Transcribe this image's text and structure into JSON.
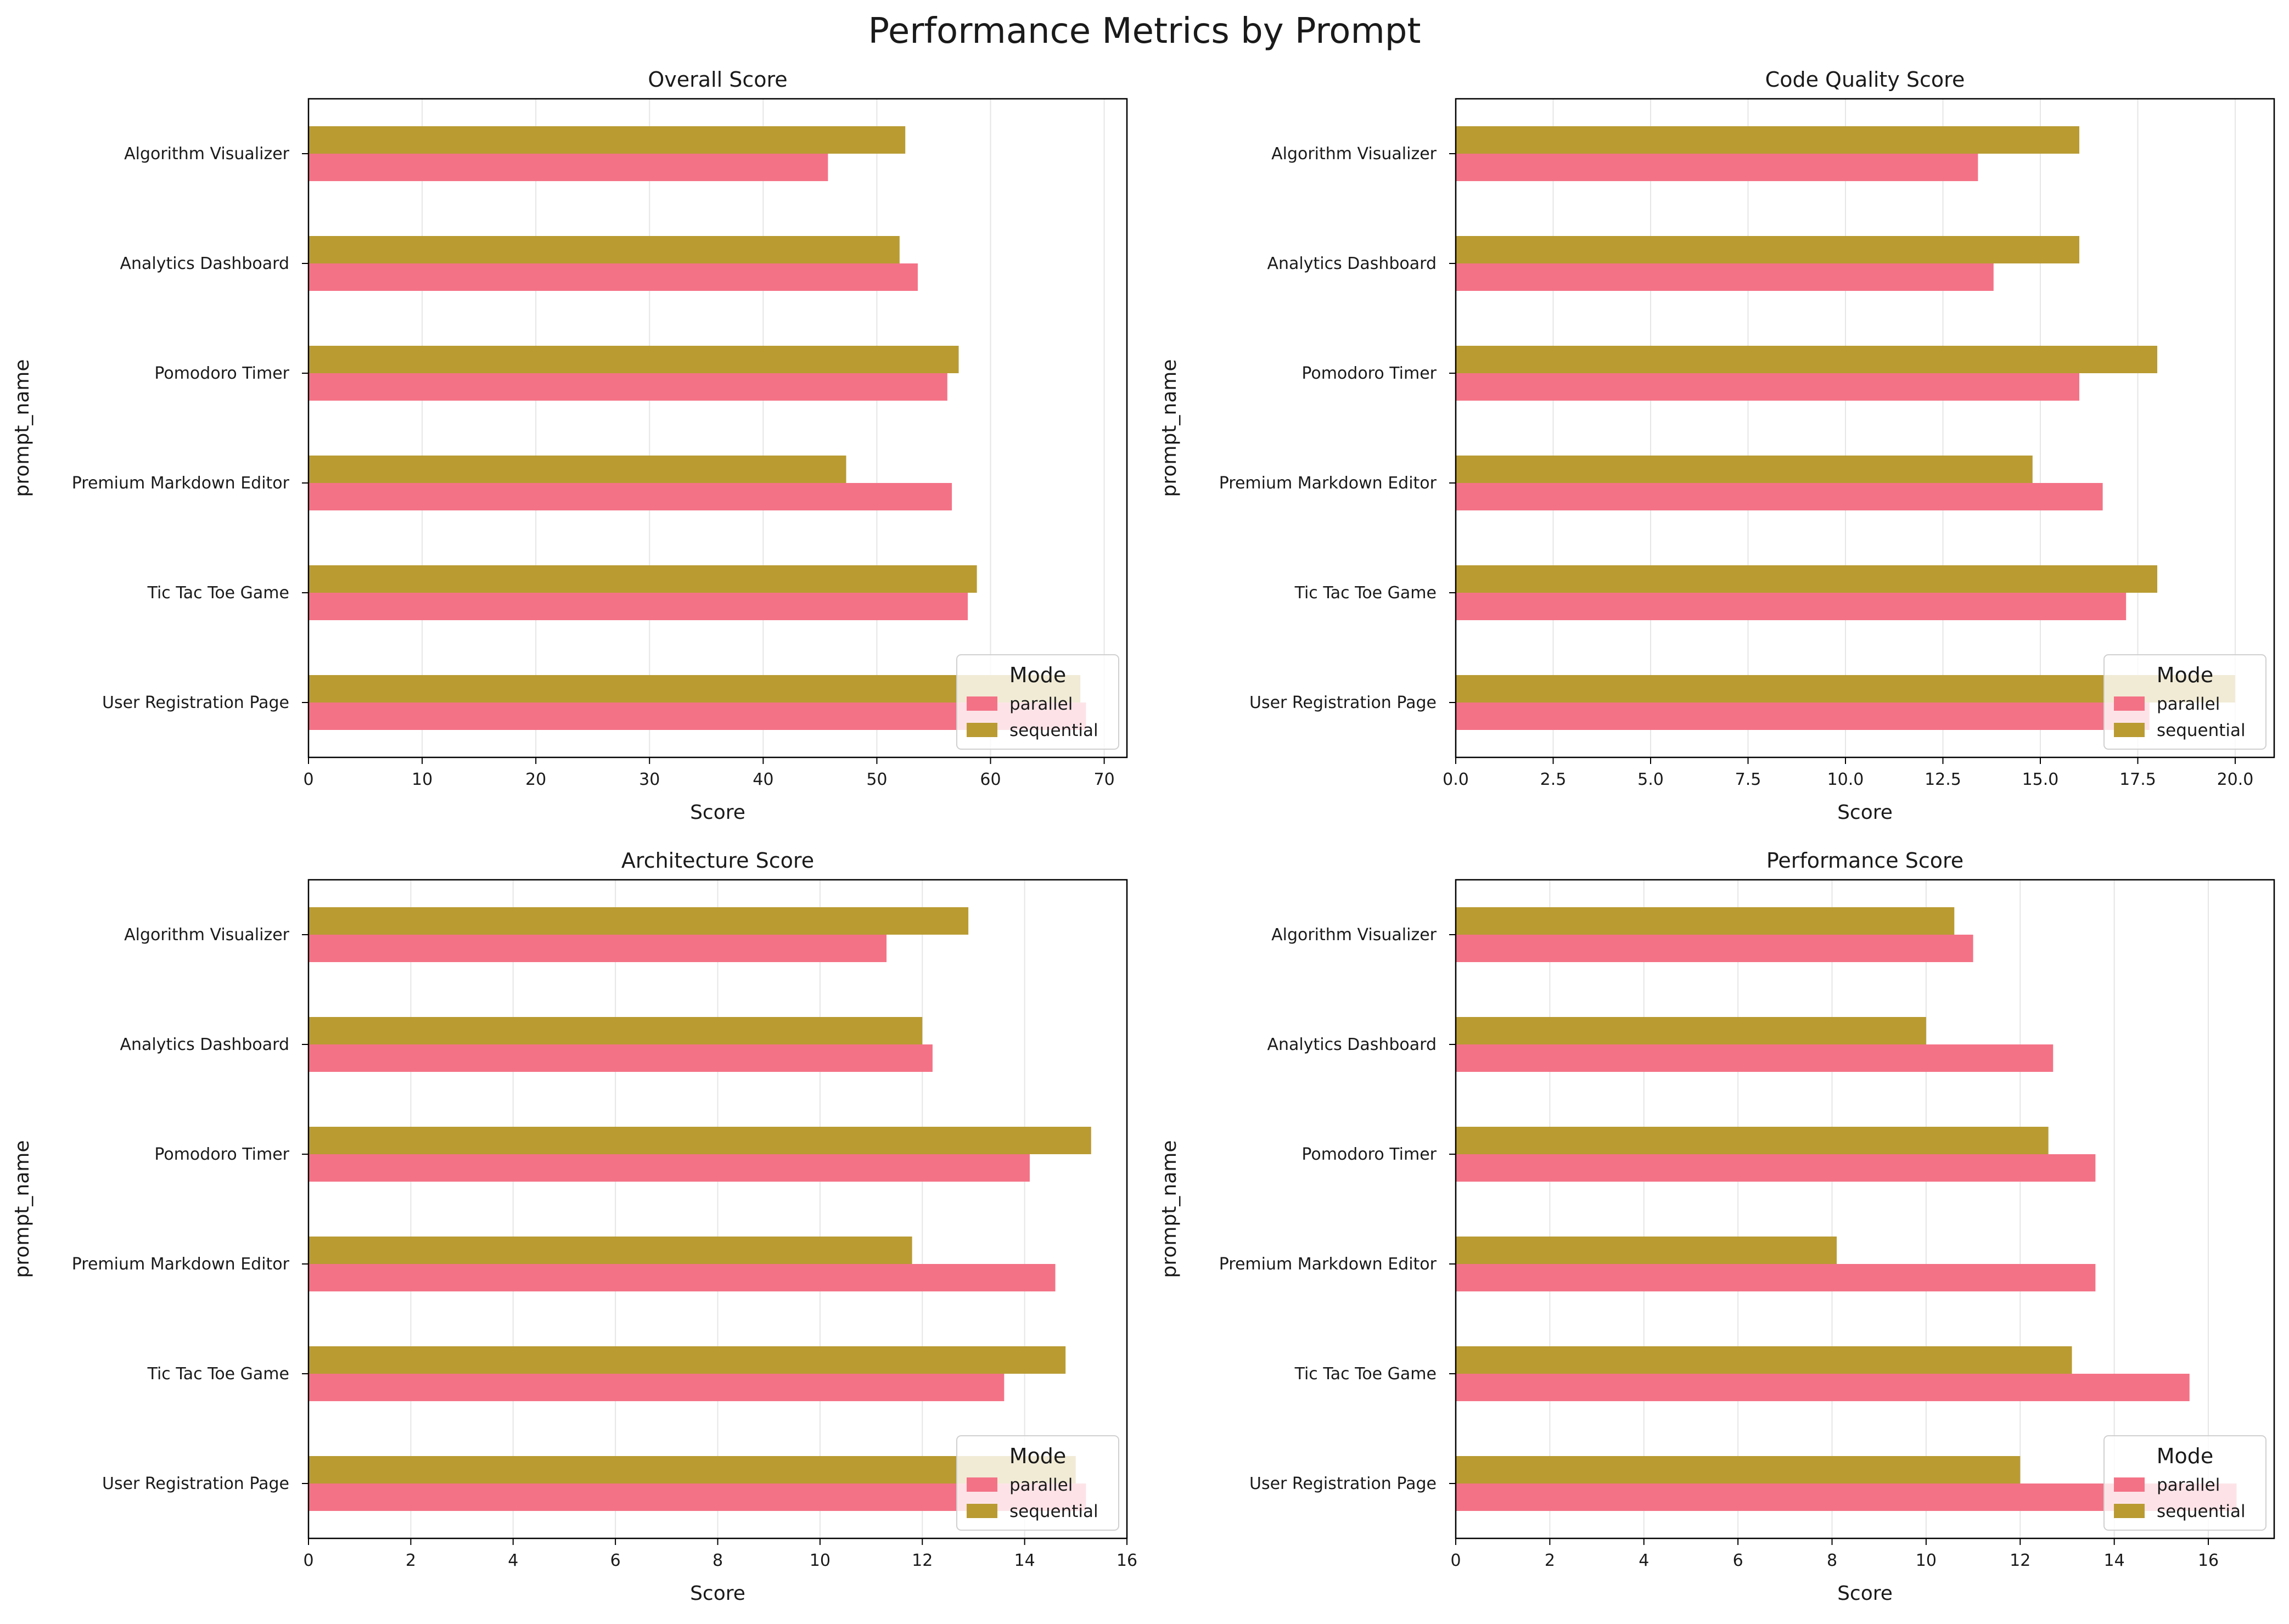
{
  "figure_title": "Performance Metrics by Prompt",
  "colors": {
    "parallel": "#f47286",
    "sequential": "#b99b32",
    "grid": "#e6e6e6"
  },
  "chart_data": [
    {
      "type": "bar",
      "orientation": "horizontal",
      "title": "Overall Score",
      "xlabel": "Score",
      "ylabel": "prompt_name",
      "xlim": [
        0,
        72
      ],
      "xticks": [
        0,
        10,
        20,
        30,
        40,
        50,
        60,
        70
      ],
      "xtick_labels": [
        "0",
        "10",
        "20",
        "30",
        "40",
        "50",
        "60",
        "70"
      ],
      "grid": "vertical",
      "categories": [
        "User Registration Page",
        "Tic Tac Toe Game",
        "Premium Markdown Editor",
        "Pomodoro Timer",
        "Analytics Dashboard",
        "Algorithm Visualizer"
      ],
      "series": [
        {
          "name": "parallel",
          "values": [
            68.4,
            58.0,
            56.6,
            56.2,
            53.6,
            45.7
          ]
        },
        {
          "name": "sequential",
          "values": [
            67.9,
            58.8,
            47.3,
            57.2,
            52.0,
            52.5
          ]
        }
      ],
      "legend": {
        "title": "Mode",
        "placement": "lower-right"
      }
    },
    {
      "type": "bar",
      "orientation": "horizontal",
      "title": "Code Quality Score",
      "xlabel": "Score",
      "ylabel": "prompt_name",
      "xlim": [
        0,
        21
      ],
      "xticks": [
        0,
        2.5,
        5,
        7.5,
        10,
        12.5,
        15,
        17.5,
        20
      ],
      "xtick_labels": [
        "0.0",
        "2.5",
        "5.0",
        "7.5",
        "10.0",
        "12.5",
        "15.0",
        "17.5",
        "20.0"
      ],
      "grid": "vertical",
      "categories": [
        "User Registration Page",
        "Tic Tac Toe Game",
        "Premium Markdown Editor",
        "Pomodoro Timer",
        "Analytics Dashboard",
        "Algorithm Visualizer"
      ],
      "series": [
        {
          "name": "parallel",
          "values": [
            17.8,
            17.2,
            16.6,
            16.0,
            13.8,
            13.4
          ]
        },
        {
          "name": "sequential",
          "values": [
            20.0,
            18.0,
            14.8,
            18.0,
            16.0,
            16.0
          ]
        }
      ],
      "legend": {
        "title": "Mode",
        "placement": "lower-right"
      }
    },
    {
      "type": "bar",
      "orientation": "horizontal",
      "title": "Architecture Score",
      "xlabel": "Score",
      "ylabel": "prompt_name",
      "xlim": [
        0,
        16
      ],
      "xticks": [
        0,
        2,
        4,
        6,
        8,
        10,
        12,
        14,
        16
      ],
      "xtick_labels": [
        "0",
        "2",
        "4",
        "6",
        "8",
        "10",
        "12",
        "14",
        "16"
      ],
      "grid": "vertical",
      "categories": [
        "User Registration Page",
        "Tic Tac Toe Game",
        "Premium Markdown Editor",
        "Pomodoro Timer",
        "Analytics Dashboard",
        "Algorithm Visualizer"
      ],
      "series": [
        {
          "name": "parallel",
          "values": [
            15.2,
            13.6,
            14.6,
            14.1,
            12.2,
            11.3
          ]
        },
        {
          "name": "sequential",
          "values": [
            15.0,
            14.8,
            11.8,
            15.3,
            12.0,
            12.9
          ]
        }
      ],
      "legend": {
        "title": "Mode",
        "placement": "lower-right"
      }
    },
    {
      "type": "bar",
      "orientation": "horizontal",
      "title": "Performance Score",
      "xlabel": "Score",
      "ylabel": "prompt_name",
      "xlim": [
        0,
        17.4
      ],
      "xticks": [
        0,
        2,
        4,
        6,
        8,
        10,
        12,
        14,
        16
      ],
      "xtick_labels": [
        "0",
        "2",
        "4",
        "6",
        "8",
        "10",
        "12",
        "14",
        "16"
      ],
      "grid": "vertical",
      "categories": [
        "User Registration Page",
        "Tic Tac Toe Game",
        "Premium Markdown Editor",
        "Pomodoro Timer",
        "Analytics Dashboard",
        "Algorithm Visualizer"
      ],
      "series": [
        {
          "name": "parallel",
          "values": [
            16.6,
            15.6,
            13.6,
            13.6,
            12.7,
            11.0
          ]
        },
        {
          "name": "sequential",
          "values": [
            12.0,
            13.1,
            8.1,
            12.6,
            10.0,
            10.6
          ]
        }
      ],
      "legend": {
        "title": "Mode",
        "placement": "lower-right"
      }
    }
  ]
}
